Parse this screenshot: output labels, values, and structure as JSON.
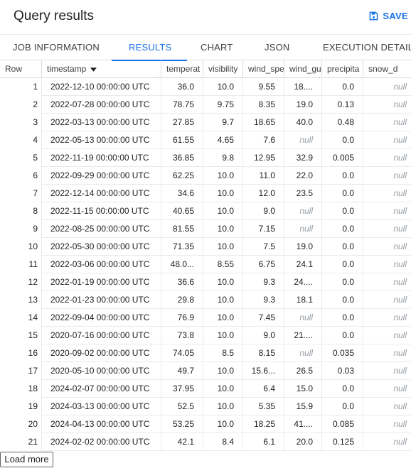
{
  "header": {
    "title": "Query results",
    "save_label": "SAVE"
  },
  "tabs": [
    {
      "label": "JOB INFORMATION",
      "active": false
    },
    {
      "label": "RESULTS",
      "active": true
    },
    {
      "label": "CHART",
      "active": false
    },
    {
      "label": "JSON",
      "active": false
    },
    {
      "label": "EXECUTION DETAILS",
      "active": false
    }
  ],
  "table": {
    "columns": [
      "Row",
      "timestamp",
      "temperat",
      "visibility",
      "wind_spe",
      "wind_gu",
      "precipita",
      "snow_d"
    ],
    "sorted_column": "timestamp",
    "null_text": "null",
    "rows": [
      [
        "1",
        "2022-12-10 00:00:00 UTC",
        "36.0",
        "10.0",
        "9.55",
        "18....",
        "0.0",
        "null"
      ],
      [
        "2",
        "2022-07-28 00:00:00 UTC",
        "78.75",
        "9.75",
        "8.35",
        "19.0",
        "0.13",
        "null"
      ],
      [
        "3",
        "2022-03-13 00:00:00 UTC",
        "27.85",
        "9.7",
        "18.65",
        "40.0",
        "0.48",
        "null"
      ],
      [
        "4",
        "2022-05-13 00:00:00 UTC",
        "61.55",
        "4.65",
        "7.6",
        "null",
        "0.0",
        "null"
      ],
      [
        "5",
        "2022-11-19 00:00:00 UTC",
        "36.85",
        "9.8",
        "12.95",
        "32.9",
        "0.005",
        "null"
      ],
      [
        "6",
        "2022-09-29 00:00:00 UTC",
        "62.25",
        "10.0",
        "11.0",
        "22.0",
        "0.0",
        "null"
      ],
      [
        "7",
        "2022-12-14 00:00:00 UTC",
        "34.6",
        "10.0",
        "12.0",
        "23.5",
        "0.0",
        "null"
      ],
      [
        "8",
        "2022-11-15 00:00:00 UTC",
        "40.65",
        "10.0",
        "9.0",
        "null",
        "0.0",
        "null"
      ],
      [
        "9",
        "2022-08-25 00:00:00 UTC",
        "81.55",
        "10.0",
        "7.15",
        "null",
        "0.0",
        "null"
      ],
      [
        "10",
        "2022-05-30 00:00:00 UTC",
        "71.35",
        "10.0",
        "7.5",
        "19.0",
        "0.0",
        "null"
      ],
      [
        "11",
        "2022-03-06 00:00:00 UTC",
        "48.0...",
        "8.55",
        "6.75",
        "24.1",
        "0.0",
        "null"
      ],
      [
        "12",
        "2022-01-19 00:00:00 UTC",
        "36.6",
        "10.0",
        "9.3",
        "24....",
        "0.0",
        "null"
      ],
      [
        "13",
        "2022-01-23 00:00:00 UTC",
        "29.8",
        "10.0",
        "9.3",
        "18.1",
        "0.0",
        "null"
      ],
      [
        "14",
        "2022-09-04 00:00:00 UTC",
        "76.9",
        "10.0",
        "7.45",
        "null",
        "0.0",
        "null"
      ],
      [
        "15",
        "2020-07-16 00:00:00 UTC",
        "73.8",
        "10.0",
        "9.0",
        "21....",
        "0.0",
        "null"
      ],
      [
        "16",
        "2020-09-02 00:00:00 UTC",
        "74.05",
        "8.5",
        "8.15",
        "null",
        "0.035",
        "null"
      ],
      [
        "17",
        "2020-05-10 00:00:00 UTC",
        "49.7",
        "10.0",
        "15.6...",
        "26.5",
        "0.03",
        "null"
      ],
      [
        "18",
        "2024-02-07 00:00:00 UTC",
        "37.95",
        "10.0",
        "6.4",
        "15.0",
        "0.0",
        "null"
      ],
      [
        "19",
        "2024-03-13 00:00:00 UTC",
        "52.5",
        "10.0",
        "5.35",
        "15.9",
        "0.0",
        "null"
      ],
      [
        "20",
        "2024-04-13 00:00:00 UTC",
        "53.25",
        "10.0",
        "18.25",
        "41....",
        "0.085",
        "null"
      ],
      [
        "21",
        "2024-02-02 00:00:00 UTC",
        "42.1",
        "8.4",
        "6.1",
        "20.0",
        "0.125",
        "null"
      ]
    ]
  },
  "footer": {
    "load_more_label": "Load more"
  },
  "colors": {
    "accent": "#1a73e8",
    "border": "#dadce0",
    "null_text": "#9aa0a6"
  },
  "icons": {
    "save": "save-icon",
    "sort": "sort-descending-icon",
    "resize": "resize-handle-icon"
  }
}
